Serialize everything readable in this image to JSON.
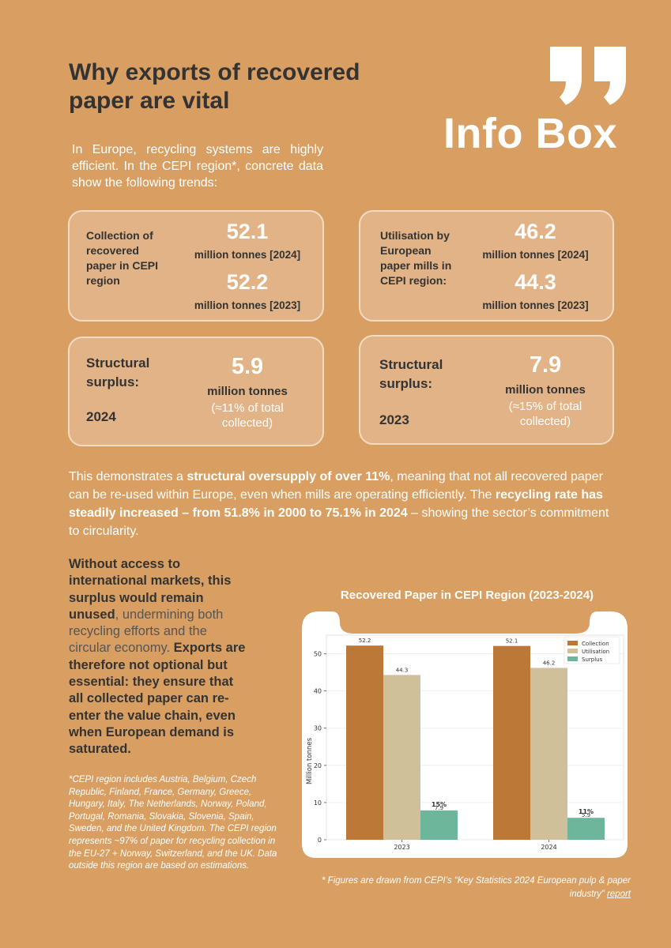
{
  "title": "Why exports of recovered paper are vital",
  "intro": "In Europe, recycling systems are highly efficient. In the CEPI region*, concrete data show the following trends:",
  "infobox_label": "Info Box",
  "cards": {
    "collection": {
      "label": "Collection of recovered paper in CEPI region",
      "value_2024": "52.1",
      "unit_2024": "million tonnes [2024]",
      "value_2023": "52.2",
      "unit_2023": "million tonnes [2023]"
    },
    "utilisation": {
      "label": "Utilisation by European paper mills in CEPI region:",
      "value_2024": "46.2",
      "unit_2024": "million tonnes [2024]",
      "value_2023": "44.3",
      "unit_2023": "million tonnes [2023]"
    },
    "surplus_2024": {
      "label": "Structural surplus:",
      "year": "2024",
      "value": "5.9",
      "unit": "million tonnes",
      "note": "(≈11% of total collected)"
    },
    "surplus_2023": {
      "label": "Structural surplus:",
      "year": "2023",
      "value": "7.9",
      "unit": "million tonnes",
      "note": "(≈15% of total collected)"
    }
  },
  "paragraph": {
    "p1": "This demonstrates a ",
    "b1": "structural oversupply of over 11%",
    "p2": ", meaning that not all recovered paper can be re-used within Europe, even when mills are operating efficiently. The ",
    "b2": "recycling rate has steadily increased – from 51.8% in 2000 to 75.1% in 2024",
    "p3": " – showing the sector’s commitment to circularity."
  },
  "left_col": {
    "b1": "Without access to international markets, this surplus would remain unused",
    "p1": ", undermining both recycling efforts and the circular economy. ",
    "b2": "Exports are therefore not optional but essential: they ensure that all collected paper can re-enter the value chain, even when European demand is saturated."
  },
  "footnote": "*CEPI region includes Austria, Belgium, Czech Republic, Finland, France, Germany, Greece, Hungary, Italy, The Netherlands, Norway, Poland, Portugal, Romania, Slovakia, Slovenia, Spain, Sweden, and the United Kingdom. The CEPI region represents ~97% of paper for recycling collection in the EU-27 + Norway, Switzerland, and the UK. Data outside this region are based on estimations.",
  "source": {
    "text": "* Figures are drawn from CEPI’s “Key Statistics 2024 European pulp & paper industry” ",
    "link": "report"
  },
  "colors": {
    "background": "#d99f62",
    "card": "#e2b386",
    "collection": "#bb7837",
    "utilisation": "#cfc09a",
    "surplus": "#6db59b"
  },
  "chart_data": {
    "type": "bar",
    "title": "Recovered Paper in CEPI Region (2023-2024)",
    "categories": [
      "2023",
      "2024"
    ],
    "series": [
      {
        "name": "Collection",
        "values": [
          52.2,
          52.1
        ],
        "color": "#bb7837"
      },
      {
        "name": "Utilisation",
        "values": [
          44.3,
          46.2
        ],
        "color": "#cfc09a"
      },
      {
        "name": "Surplus",
        "values": [
          7.9,
          5.9
        ],
        "color": "#6db59b"
      }
    ],
    "surplus_pct_labels": [
      "15%",
      "11%"
    ],
    "ylabel": "Million tonnes",
    "xlabel": "",
    "yticks": [
      0,
      10,
      20,
      30,
      40,
      50
    ],
    "ylim": [
      0,
      55
    ],
    "legend": "top-right"
  }
}
